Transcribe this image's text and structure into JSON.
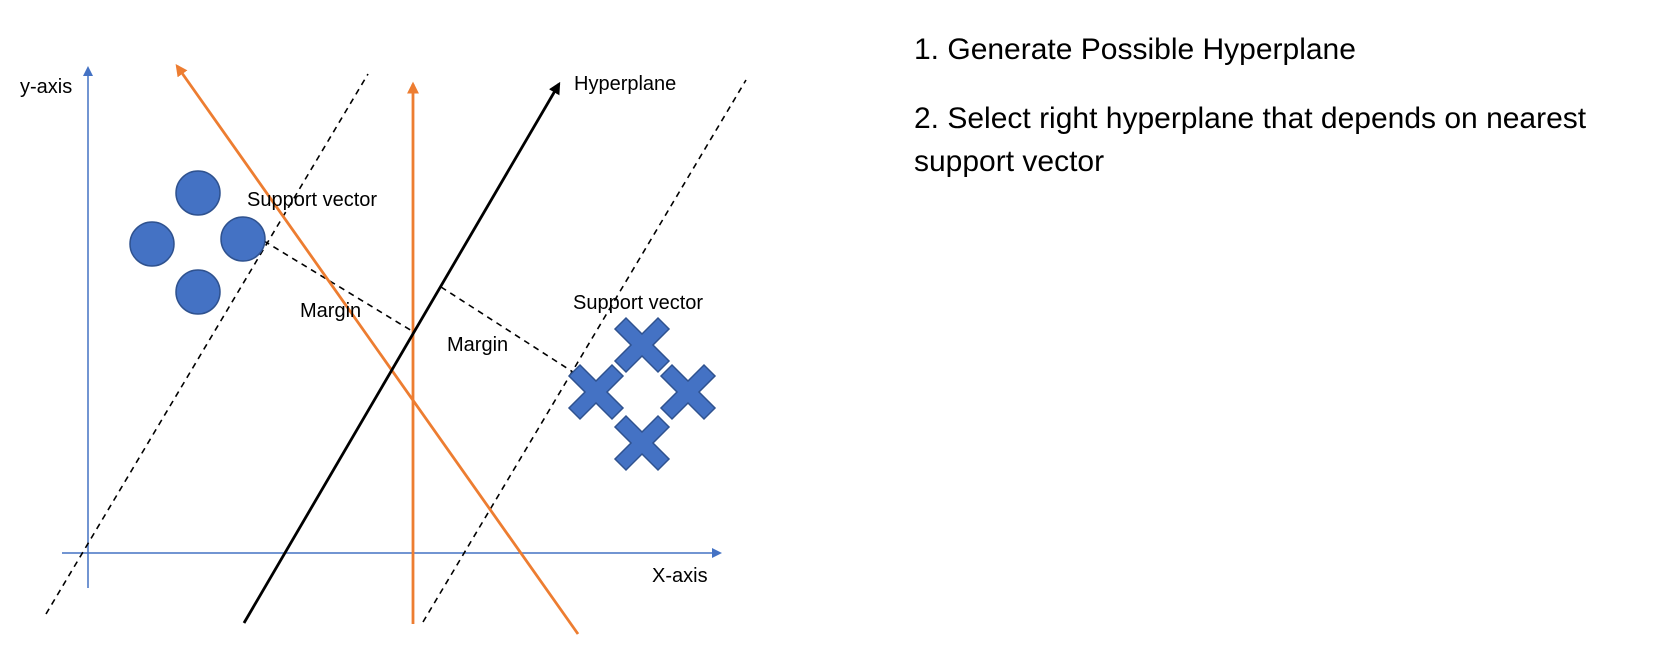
{
  "diagram": {
    "labels": {
      "y_axis": "y-axis",
      "x_axis": "X-axis",
      "hyperplane": "Hyperplane",
      "support_vector_circles": "Support vector",
      "support_vector_crosses": "Support vector",
      "margin_left": "Margin",
      "margin_right": "Margin"
    },
    "colors": {
      "axis": "#4472C4",
      "points": "#4472C4",
      "point_outline": "#2F528F",
      "candidate_hyperplanes": "#ED7D31",
      "optimal_hyperplane": "#000000",
      "margin_boundaries": "#000000"
    },
    "class_a_marker": "circle",
    "class_b_marker": "cross"
  },
  "steps": [
    "1. Generate Possible Hyperplane",
    "2. Select right hyperplane that depends on nearest support vector"
  ]
}
